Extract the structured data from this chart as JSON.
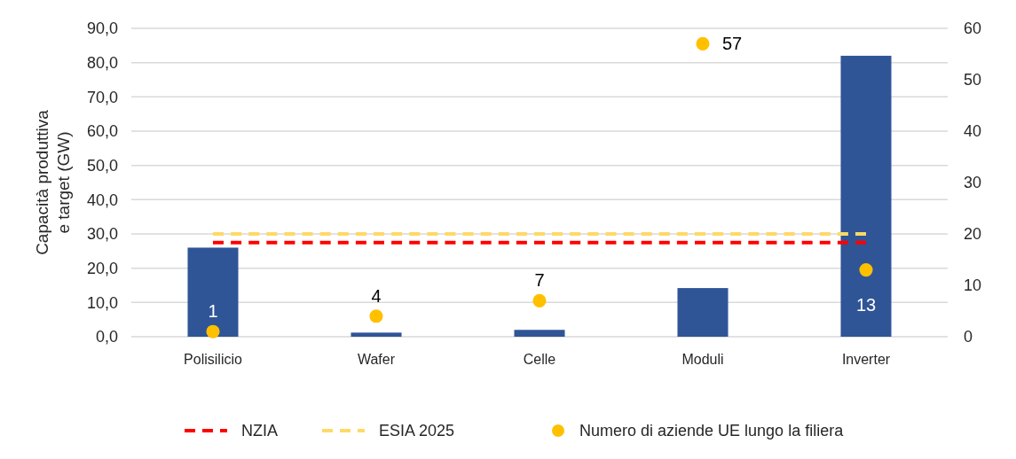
{
  "chart_data": {
    "type": "bar",
    "ylabel": "Capacità produttiva e target (GW)",
    "categories": [
      "Polisilicio",
      "Wafer",
      "Celle",
      "Moduli",
      "Inverter"
    ],
    "series": [
      {
        "color": "#2f5597",
        "values": [
          26,
          1.2,
          2,
          14.2,
          82
        ]
      },
      {
        "type": "line",
        "name": "NZIA",
        "color": "#ff0000",
        "line_style": "dashed",
        "values": [
          27.5,
          27.5,
          27.5,
          27.5,
          27.5
        ]
      },
      {
        "type": "line",
        "name": "ESIA 2025",
        "color": "#ffd966",
        "line_style": "dashed",
        "values": [
          30,
          30,
          30,
          30,
          30
        ]
      },
      {
        "type": "scatter",
        "name": "Numero di aziende UE lungo la filiera",
        "color": "#ffc000",
        "axis": "y2",
        "marker": "circle",
        "values": [
          1,
          4,
          7,
          57,
          13
        ],
        "value_labels": [
          "1",
          "4",
          "7",
          "57",
          "13"
        ]
      }
    ],
    "ylim": [
      0,
      90
    ],
    "yticks": [
      {
        "value": 0,
        "label": "0,0"
      },
      {
        "value": 10,
        "label": "10,0"
      },
      {
        "value": 20,
        "label": "20,0"
      },
      {
        "value": 30,
        "label": "30,0"
      },
      {
        "value": 40,
        "label": "40,0"
      },
      {
        "value": 50,
        "label": "50,0"
      },
      {
        "value": 60,
        "label": "60,0"
      },
      {
        "value": 70,
        "label": "70,0"
      },
      {
        "value": 80,
        "label": "80,0"
      },
      {
        "value": 90,
        "label": "90,0"
      }
    ],
    "y2lim": [
      0,
      60
    ],
    "y2ticks": [
      0,
      10,
      20,
      30,
      40,
      50,
      60
    ],
    "grid": "y",
    "legend": "bottom"
  }
}
